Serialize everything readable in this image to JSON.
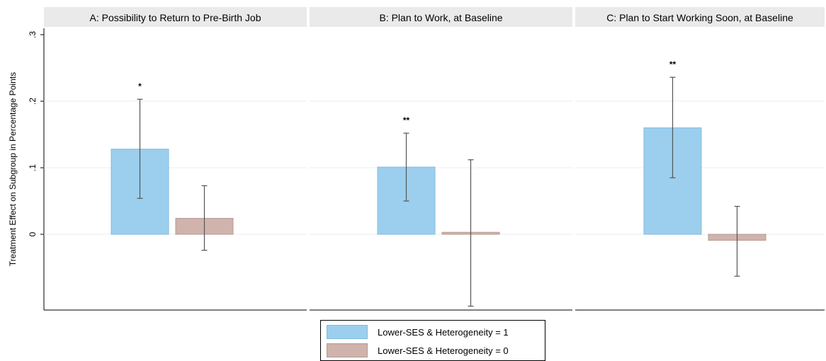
{
  "chart_data": {
    "type": "bar",
    "ylabel": "Treatment Effect on Subgroup in Percentage Points",
    "yticks": [
      0,
      0.1,
      0.2,
      0.3
    ],
    "ytick_labels": [
      "0",
      ".1",
      ".2",
      ".3"
    ],
    "ylim": [
      -0.115,
      0.305
    ],
    "grid": true,
    "legend_position": "bottom",
    "panels": [
      {
        "title": "A: Possibility to Return to Pre-Birth Job",
        "bars": [
          {
            "series": "Lower-SES & Heterogeneity = 1",
            "value": 0.128,
            "ci": [
              0.054,
              0.203
            ],
            "star": "*"
          },
          {
            "series": "Lower-SES & Heterogeneity = 0",
            "value": 0.024,
            "ci": [
              -0.024,
              0.073
            ],
            "star": ""
          }
        ]
      },
      {
        "title": "B: Plan to Work, at Baseline",
        "bars": [
          {
            "series": "Lower-SES & Heterogeneity = 1",
            "value": 0.101,
            "ci": [
              0.05,
              0.152
            ],
            "star": "**"
          },
          {
            "series": "Lower-SES & Heterogeneity = 0",
            "value": 0.003,
            "ci": [
              -0.108,
              0.112
            ],
            "star": ""
          }
        ]
      },
      {
        "title": "C: Plan to Start Working Soon, at Baseline",
        "bars": [
          {
            "series": "Lower-SES & Heterogeneity = 1",
            "value": 0.16,
            "ci": [
              0.085,
              0.236
            ],
            "star": "**"
          },
          {
            "series": "Lower-SES & Heterogeneity = 0",
            "value": -0.009,
            "ci": [
              -0.063,
              0.042
            ],
            "star": ""
          }
        ]
      }
    ],
    "series": [
      {
        "name": "Lower-SES & Heterogeneity = 1",
        "color": "#9ccfed",
        "stroke": "#7fbbe0"
      },
      {
        "name": "Lower-SES & Heterogeneity = 0",
        "color": "#cfb3ac",
        "stroke": "#b79a92"
      }
    ]
  }
}
